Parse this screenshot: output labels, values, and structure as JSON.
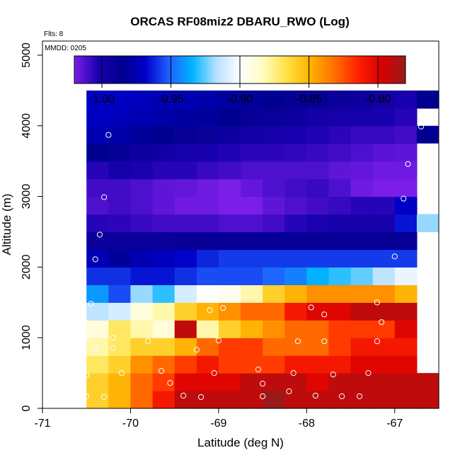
{
  "chart_data": {
    "type": "heatmap",
    "title": "ORCAS RF08miz2 DBARU_RWO (Log)",
    "xlabel": "Latitude (deg N)",
    "ylabel": "Altitude (m)",
    "flts_label": "Flts: 8",
    "mmdd_label": "MMDD: 0205",
    "xlim": [
      -71.0,
      -66.5
    ],
    "ylim": [
      0,
      5200
    ],
    "x_ticks": [
      -71,
      -70,
      -69,
      -68,
      -67
    ],
    "x_tick_labels": [
      "-71",
      "-70",
      "-69",
      "-68",
      "-67"
    ],
    "y_ticks": [
      0,
      1000,
      2000,
      3000,
      4000,
      5000
    ],
    "y_tick_labels": [
      "0",
      "1000",
      "2000",
      "3000",
      "4000",
      "5000"
    ],
    "colorbar": {
      "range": [
        -1.02,
        -0.78
      ],
      "ticks": [
        -1.0,
        -0.95,
        -0.9,
        -0.85,
        -0.8
      ],
      "tick_labels": [
        "-1.00",
        "-0.95",
        "-0.90",
        "-0.85",
        "-0.80"
      ],
      "stops": [
        "#7a1ee8",
        "#1a00b0",
        "#00008e",
        "#0000c8",
        "#2060ff",
        "#00b4ff",
        "#b6e0ff",
        "#ffffff",
        "#fffcc0",
        "#ffe040",
        "#ffb000",
        "#ff7000",
        "#ff2000",
        "#d80000",
        "#9a1a1a"
      ]
    },
    "lat_start": -70.5,
    "lat_step": 0.25,
    "alt_start": 0,
    "alt_step": 250,
    "cells": [
      [
        -0.86,
        -0.85,
        -0.83,
        -0.81,
        -0.79,
        -0.79,
        -0.79,
        -0.79,
        -0.78,
        -0.79,
        -0.79,
        -0.79,
        -0.79,
        -0.79,
        -0.79,
        -0.79
      ],
      [
        -0.86,
        -0.85,
        -0.83,
        -0.82,
        -0.8,
        -0.8,
        -0.8,
        -0.79,
        -0.79,
        -0.79,
        -0.8,
        -0.79,
        -0.79,
        -0.79,
        -0.79,
        -0.79
      ],
      [
        -0.87,
        -0.86,
        -0.84,
        -0.83,
        -0.82,
        -0.81,
        -0.82,
        -0.82,
        -0.82,
        -0.81,
        -0.81,
        -0.81,
        -0.8,
        -0.8,
        -0.8,
        null
      ],
      [
        -0.88,
        -0.87,
        -0.86,
        -0.86,
        -0.85,
        -0.83,
        -0.82,
        -0.82,
        -0.83,
        -0.83,
        -0.83,
        -0.82,
        -0.81,
        -0.81,
        -0.81,
        null
      ],
      [
        -0.89,
        -0.87,
        -0.88,
        -0.89,
        -0.79,
        -0.88,
        -0.86,
        -0.85,
        -0.84,
        -0.83,
        -0.83,
        -0.82,
        -0.82,
        -0.82,
        -0.8,
        null
      ],
      [
        -0.915,
        -0.91,
        -0.89,
        -0.88,
        -0.86,
        -0.85,
        -0.84,
        -0.83,
        -0.83,
        -0.81,
        -0.8,
        -0.8,
        -0.79,
        -0.79,
        -0.79,
        null
      ],
      [
        -0.94,
        -0.955,
        -0.92,
        -0.93,
        -0.91,
        -0.9,
        -0.895,
        -0.88,
        -0.86,
        -0.85,
        -0.84,
        -0.84,
        -0.84,
        -0.84,
        -0.85,
        null
      ],
      [
        -0.96,
        -0.96,
        -0.965,
        -0.965,
        -0.96,
        -0.955,
        -0.955,
        -0.955,
        -0.95,
        -0.945,
        -0.935,
        -0.93,
        -0.925,
        -0.915,
        -0.905,
        null
      ],
      [
        -0.975,
        -0.982,
        -0.975,
        -0.972,
        -0.968,
        -0.962,
        -0.958,
        -0.958,
        -0.958,
        -0.958,
        -0.958,
        -0.958,
        -0.958,
        -0.958,
        -0.958,
        null
      ],
      [
        -0.993,
        -0.993,
        -0.992,
        -0.992,
        -0.99,
        -0.99,
        -0.99,
        -0.99,
        -0.99,
        -0.99,
        -0.99,
        -0.99,
        -0.99,
        -0.99,
        -0.99,
        null
      ],
      [
        -1.005,
        -1.006,
        -1.008,
        -1.01,
        -1.01,
        -1.01,
        -1.012,
        -1.012,
        -1.01,
        -1.005,
        -1.003,
        -1.0,
        -1.0,
        -1.0,
        -0.965,
        -0.92
      ],
      [
        -1.012,
        -1.01,
        -1.012,
        -1.015,
        -1.018,
        -1.018,
        -1.02,
        -1.02,
        -1.015,
        -1.012,
        -1.01,
        -1.008,
        -1.005,
        -1.005,
        -0.97,
        null
      ],
      [
        -1.01,
        -1.01,
        -1.012,
        -1.015,
        -1.016,
        -1.018,
        -1.02,
        -1.016,
        -1.012,
        -1.01,
        -1.008,
        -1.012,
        -1.018,
        -1.02,
        -1.02,
        null
      ],
      [
        -1.005,
        -1.0,
        -1.003,
        -1.005,
        -1.005,
        -1.008,
        -1.01,
        -1.012,
        -1.012,
        -1.012,
        -1.012,
        -1.015,
        -1.016,
        -1.018,
        -1.018,
        null
      ],
      [
        -0.985,
        -0.99,
        -0.995,
        -0.997,
        -1.0,
        -1.002,
        -1.004,
        -1.006,
        -1.006,
        -1.007,
        -1.008,
        -1.01,
        -1.012,
        -1.014,
        -1.015,
        null
      ],
      [
        -0.975,
        -0.978,
        -0.982,
        -0.985,
        -0.99,
        -0.992,
        -0.995,
        -0.998,
        -1.0,
        -1.002,
        -1.004,
        -1.006,
        -1.008,
        -1.008,
        -1.01,
        null
      ],
      [
        -0.97,
        -0.972,
        -0.975,
        -0.978,
        -0.98,
        -0.982,
        -0.985,
        -0.99,
        -0.992,
        -0.995,
        -0.998,
        -1.0,
        -1.0,
        -1.002,
        -1.005,
        null
      ],
      [
        -0.97,
        -0.97,
        -0.972,
        -0.975,
        -0.975,
        -0.978,
        -0.98,
        -0.982,
        -0.985,
        -0.988,
        -0.99,
        -0.992,
        -0.995,
        -0.998,
        -1.002,
        -0.985
      ]
    ],
    "extra_cell": {
      "lat": -66.5,
      "alt": 4000,
      "value": -0.985
    },
    "points": [
      [
        -70.5,
        170
      ],
      [
        -70.3,
        160
      ],
      [
        -69.4,
        180
      ],
      [
        -69.2,
        160
      ],
      [
        -68.5,
        170
      ],
      [
        -68.2,
        240
      ],
      [
        -67.9,
        180
      ],
      [
        -67.6,
        170
      ],
      [
        -67.4,
        170
      ],
      [
        -70.5,
        470
      ],
      [
        -70.1,
        500
      ],
      [
        -69.65,
        530
      ],
      [
        -69.55,
        360
      ],
      [
        -69.05,
        500
      ],
      [
        -68.55,
        550
      ],
      [
        -68.5,
        350
      ],
      [
        -68.15,
        500
      ],
      [
        -67.7,
        480
      ],
      [
        -67.3,
        500
      ],
      [
        -70.5,
        1020
      ],
      [
        -70.4,
        850
      ],
      [
        -70.2,
        850
      ],
      [
        -70.2,
        1000
      ],
      [
        -69.8,
        950
      ],
      [
        -69.25,
        830
      ],
      [
        -69.0,
        960
      ],
      [
        -68.1,
        950
      ],
      [
        -67.8,
        950
      ],
      [
        -67.2,
        950
      ],
      [
        -67.15,
        1220
      ],
      [
        -70.45,
        1480
      ],
      [
        -69.95,
        1310
      ],
      [
        -69.85,
        1430
      ],
      [
        -69.1,
        1390
      ],
      [
        -68.95,
        1420
      ],
      [
        -67.95,
        1430
      ],
      [
        -67.8,
        1330
      ],
      [
        -67.2,
        1500
      ],
      [
        -70.4,
        2110
      ],
      [
        -67.0,
        2150
      ],
      [
        -70.35,
        2460
      ],
      [
        -70.3,
        2990
      ],
      [
        -66.9,
        2970
      ],
      [
        -66.85,
        3460
      ],
      [
        -70.25,
        3870
      ],
      [
        -66.7,
        3990
      ]
    ]
  }
}
